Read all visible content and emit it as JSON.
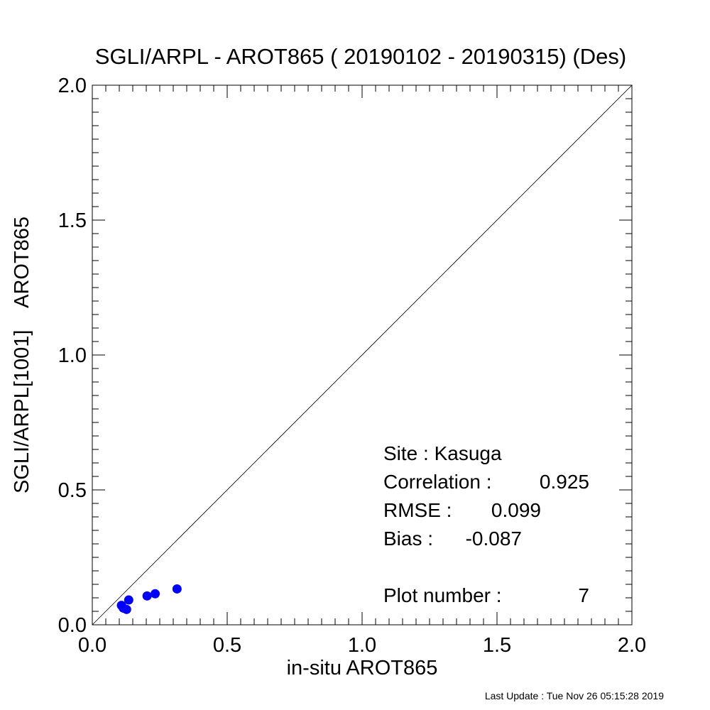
{
  "chart_data": {
    "type": "scatter",
    "title": "SGLI/ARPL - AROT865 ( 20190102 - 20190315) (Des)",
    "xlabel": "in-situ AROT865",
    "ylabel": "SGLI/ARPL[1001]    AROT865",
    "xlim": [
      0.0,
      2.0
    ],
    "ylim": [
      0.0,
      2.0
    ],
    "xticks": [
      "0.0",
      "0.5",
      "1.0",
      "1.5",
      "2.0"
    ],
    "yticks": [
      "0.0",
      "0.5",
      "1.0",
      "1.5",
      "2.0"
    ],
    "grid": false,
    "reference_line": "1:1",
    "marker_color": "#0000ff",
    "points": [
      {
        "x": 0.108,
        "y": 0.072
      },
      {
        "x": 0.115,
        "y": 0.062
      },
      {
        "x": 0.127,
        "y": 0.057
      },
      {
        "x": 0.135,
        "y": 0.092
      },
      {
        "x": 0.203,
        "y": 0.107
      },
      {
        "x": 0.233,
        "y": 0.115
      },
      {
        "x": 0.314,
        "y": 0.133
      }
    ],
    "stats": {
      "site": "Site : Kasuga",
      "correlation_label": "Correlation :",
      "correlation": "0.925",
      "rmse_label": "RMSE :",
      "rmse": "0.099",
      "bias_label": "Bias :",
      "bias": "-0.087",
      "plot_number_label": "Plot number :",
      "plot_number": "7"
    }
  },
  "footer": "Last Update : Tue Nov 26 05:15:28 2019"
}
